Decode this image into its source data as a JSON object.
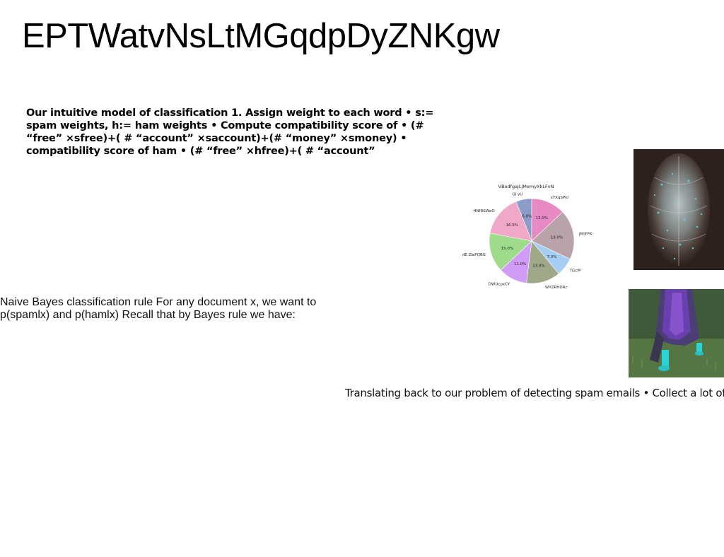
{
  "slide": {
    "title": "EPTWatvNsLtMGqdpDyZNKgw",
    "bold_text": "Our intuitive model of classification 1. Assign weight to each word • s:= spam weights, h:= ham weights • Compute compatibility score of • (# “free” ×sfree)+( # “account” ×saccount)+(# “money” ×smoney) • compatibility score of ham • (# “free” ×hfree)+( # “account”",
    "bayes_text": "Naive Bayes classification rule For any document x, we want to p(spamlx) and p(hamlx) Recall that by Bayes rule we have:",
    "translate_text": "Translating back to our problem of detecting spam emails • Collect a lot of"
  },
  "images": {
    "photo_1": "jellyfish-like-sculpture-photo",
    "photo_2": "person-in-purple-coat-on-grass-photo"
  },
  "chart_data": {
    "type": "pie",
    "title": "",
    "categories": [
      "GI vU",
      "sYXqSPkl",
      "jRhFFK",
      "TGcfP",
      "WYZRHDRc",
      "DWUcpxCY",
      "dE ZIePQBG",
      "HNfRSWeO"
    ],
    "values": [
      6.0,
      13.0,
      19.0,
      7.0,
      13.0,
      11.0,
      15.0,
      16.0
    ],
    "value_labels": [
      "6.0%",
      "13.0%",
      "19.0%",
      "7.0%",
      "13.0%",
      "11.0%",
      "15.0%",
      "16.0%"
    ],
    "top_label": "VBodfgajLjMemyXkLFvN",
    "colors": [
      "#8c9cc8",
      "#e78ac3",
      "#b8a3a8",
      "#a6cdf4",
      "#a0a88a",
      "#d19cf7",
      "#9edb8a",
      "#f0a8c8"
    ]
  }
}
